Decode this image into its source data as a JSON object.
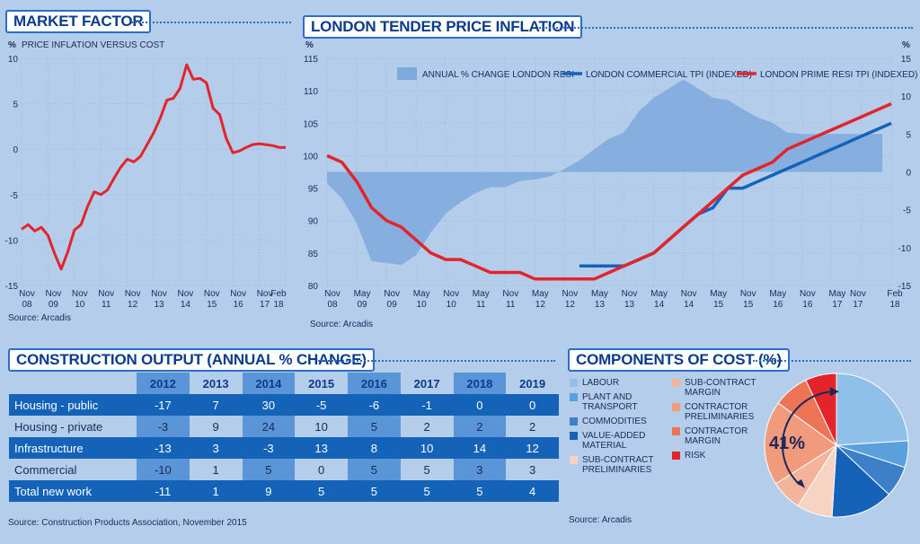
{
  "market": {
    "title": "MARKET FACTOR",
    "unit": "%",
    "subtitle": "PRICE INFLATION VERSUS COST",
    "source": "Source: Arcadis"
  },
  "london": {
    "title": "LONDON TENDER PRICE INFLATION",
    "unit_left": "%",
    "unit_right": "%",
    "source": "Source: Arcadis"
  },
  "output": {
    "title": "CONSTRUCTION OUTPUT (ANNUAL % CHANGE)",
    "years": [
      "2012",
      "2013",
      "2014",
      "2015",
      "2016",
      "2017",
      "2018",
      "2019"
    ],
    "rows": [
      {
        "label": "Housing - public",
        "values": [
          "-17",
          "7",
          "30",
          "-5",
          "-6",
          "-1",
          "0",
          "0"
        ]
      },
      {
        "label": "Housing - private",
        "values": [
          "-3",
          "9",
          "24",
          "10",
          "5",
          "2",
          "2",
          "2"
        ]
      },
      {
        "label": "Infrastructure",
        "values": [
          "-13",
          "3",
          "-3",
          "13",
          "8",
          "10",
          "14",
          "12"
        ]
      },
      {
        "label": "Commercial",
        "values": [
          "-10",
          "1",
          "5",
          "0",
          "5",
          "5",
          "3",
          "3"
        ]
      },
      {
        "label": "Total new work",
        "values": [
          "-11",
          "1",
          "9",
          "5",
          "5",
          "5",
          "5",
          "4"
        ]
      }
    ],
    "source": "Source: Construction Products Association, November 2015"
  },
  "components": {
    "title": "COMPONENTS OF COST (%)",
    "source": "Source: Arcadis",
    "highlight": "41%",
    "legend_col1": [
      {
        "label": "LABOUR",
        "color": "#8ec0ea"
      },
      {
        "label": "PLANT AND TRANSPORT",
        "color": "#5aa0dc"
      },
      {
        "label": "COMMODITIES",
        "color": "#3d7fc8"
      },
      {
        "label": "VALUE-ADDED MATERIAL",
        "color": "#1463b8"
      },
      {
        "label": "SUB-CONTRACT PRELIMINARIES",
        "color": "#f6d3c2"
      }
    ],
    "legend_col2": [
      {
        "label": "SUB-CONTRACT MARGIN",
        "color": "#f4b49a"
      },
      {
        "label": "CONTRACTOR PRELIMINARIES",
        "color": "#f29a7c"
      },
      {
        "label": "CONTRACTOR MARGIN",
        "color": "#ee7456"
      },
      {
        "label": "RISK",
        "color": "#e3242b"
      }
    ]
  },
  "chart_data": [
    {
      "type": "line",
      "title": "MARKET FACTOR",
      "subtitle": "PRICE INFLATION VERSUS COST",
      "ylabel": "%",
      "ylim": [
        -15,
        10
      ],
      "yticks": [
        "10",
        "5",
        "0",
        "-5",
        "-10",
        "-15"
      ],
      "xticks": [
        {
          "l1": "Nov",
          "l2": "08"
        },
        {
          "l1": "Nov",
          "l2": "09"
        },
        {
          "l1": "Nov",
          "l2": "10"
        },
        {
          "l1": "Nov",
          "l2": "11"
        },
        {
          "l1": "Nov",
          "l2": "12"
        },
        {
          "l1": "Nov",
          "l2": "13"
        },
        {
          "l1": "Nov",
          "l2": "14"
        },
        {
          "l1": "Nov",
          "l2": "15"
        },
        {
          "l1": "Nov",
          "l2": "16"
        },
        {
          "l1": "Nov",
          "l2": "17"
        },
        {
          "l1": "Feb",
          "l2": "18"
        }
      ],
      "x": [
        0,
        0.25,
        0.5,
        0.75,
        1.0,
        1.25,
        1.5,
        1.75,
        2.0,
        2.25,
        2.5,
        2.75,
        3.0,
        3.25,
        3.5,
        3.75,
        4.0,
        4.25,
        4.5,
        4.75,
        5.0,
        5.25,
        5.5,
        5.75,
        6.0,
        6.25,
        6.5,
        6.75,
        7.0,
        7.25,
        7.5,
        7.75,
        8.0,
        8.25,
        8.5,
        8.75,
        9.0,
        9.25,
        9.5,
        9.75,
        10.0
      ],
      "series": [
        {
          "name": "Price inflation versus cost",
          "color": "#e3242b",
          "values": [
            -8.8,
            -8.3,
            -9.0,
            -8.6,
            -9.5,
            -11.5,
            -13.2,
            -11.3,
            -8.9,
            -8.3,
            -6.3,
            -4.7,
            -5.0,
            -4.5,
            -3.2,
            -2.0,
            -1.1,
            -1.4,
            -0.8,
            0.5,
            1.8,
            3.4,
            5.4,
            5.6,
            6.7,
            9.3,
            7.7,
            7.8,
            7.3,
            4.5,
            3.8,
            1.2,
            -0.4,
            -0.2,
            0.2,
            0.5,
            0.6,
            0.5,
            0.4,
            0.2,
            0.2
          ]
        }
      ]
    },
    {
      "type": "line",
      "title": "LONDON TENDER PRICE INFLATION",
      "ylim_left": [
        80,
        115
      ],
      "ylim_right": [
        -15,
        15
      ],
      "yticks_left": [
        "115",
        "110",
        "105",
        "100",
        "95",
        "90",
        "85",
        "80"
      ],
      "yticks_right": [
        "15",
        "10",
        "5",
        "0",
        "-5",
        "-10",
        "-15"
      ],
      "xticks": [
        {
          "l1": "Nov",
          "l2": "08"
        },
        {
          "l1": "May",
          "l2": "09"
        },
        {
          "l1": "Nov",
          "l2": "09"
        },
        {
          "l1": "May",
          "l2": "10"
        },
        {
          "l1": "Nov",
          "l2": "10"
        },
        {
          "l1": "May",
          "l2": "11"
        },
        {
          "l1": "Nov",
          "l2": "11"
        },
        {
          "l1": "May",
          "l2": "12"
        },
        {
          "l1": "Nov",
          "l2": "12"
        },
        {
          "l1": "May",
          "l2": "13"
        },
        {
          "l1": "Nov",
          "l2": "13"
        },
        {
          "l1": "May",
          "l2": "14"
        },
        {
          "l1": "Nov",
          "l2": "14"
        },
        {
          "l1": "May",
          "l2": "15"
        },
        {
          "l1": "Nov",
          "l2": "15"
        },
        {
          "l1": "May",
          "l2": "16"
        },
        {
          "l1": "Nov",
          "l2": "16"
        },
        {
          "l1": "May",
          "l2": "17"
        },
        {
          "l1": "Nov",
          "l2": "17"
        },
        {
          "l1": "Feb",
          "l2": "18"
        }
      ],
      "area": {
        "name": "ANNUAL % CHANGE LONDON RESI",
        "axis": "right",
        "color": "#7ea9dd",
        "x": [
          0,
          0.5,
          1,
          1.5,
          2,
          2.5,
          3,
          3.5,
          4,
          4.5,
          5,
          5.5,
          6,
          6.5,
          7,
          7.5,
          8,
          8.5,
          9,
          9.5,
          10,
          10.5,
          11,
          11.5,
          12,
          12.5,
          13,
          13.5,
          14,
          14.5,
          15,
          15.5,
          16,
          16.5,
          17,
          17.5,
          18,
          18.5,
          18.7
        ],
        "values": [
          -1.5,
          -3.5,
          -6.8,
          -11.8,
          -12.0,
          -12.3,
          -11.0,
          -8.0,
          -5.5,
          -4.0,
          -2.8,
          -2.0,
          -2.0,
          -1.2,
          -1.0,
          -0.6,
          0.4,
          1.5,
          3.0,
          4.4,
          5.2,
          8.0,
          9.8,
          11.0,
          12.2,
          11.0,
          9.8,
          9.5,
          8.3,
          7.2,
          6.5,
          5.2,
          5.0,
          5.0,
          5.0,
          5.0,
          5.0,
          5.0,
          5.0
        ]
      },
      "series": [
        {
          "name": "LONDON COMMERCIAL TPI (INDEXED)",
          "axis": "left",
          "color": "#1463b8",
          "x": [
            8.5,
            9,
            9.5,
            10,
            10.5,
            11,
            11.5,
            12,
            12.5,
            13,
            13.5,
            14,
            14.5,
            15,
            15.5,
            16,
            16.5,
            17,
            17.5,
            18,
            18.5,
            19
          ],
          "values": [
            83,
            83,
            83,
            83,
            84,
            85,
            87,
            89,
            91,
            92,
            95,
            95,
            96,
            97,
            98,
            99,
            100,
            101,
            102,
            103,
            104,
            105
          ]
        },
        {
          "name": "LONDON PRIME RESI TPI (INDEXED)",
          "axis": "left",
          "color": "#e3242b",
          "x": [
            0,
            0.5,
            1,
            1.5,
            2,
            2.5,
            3,
            3.5,
            4,
            4.5,
            5,
            5.5,
            6,
            6.5,
            7,
            7.5,
            8,
            8.5,
            9,
            9.5,
            10,
            10.5,
            11,
            11.5,
            12,
            12.5,
            13,
            13.5,
            14,
            14.5,
            15,
            15.5,
            16,
            16.5,
            17,
            17.5,
            18,
            18.5,
            19
          ],
          "values": [
            100,
            99,
            96,
            92,
            90,
            89,
            87,
            85,
            84,
            84,
            83,
            82,
            82,
            82,
            81,
            81,
            81,
            81,
            81,
            82,
            83,
            84,
            85,
            87,
            89,
            91,
            93,
            95,
            97,
            98,
            99,
            101,
            102,
            103,
            104,
            105,
            106,
            107,
            108
          ]
        }
      ]
    },
    {
      "type": "pie",
      "title": "COMPONENTS OF COST (%)",
      "categories": [
        "LABOUR",
        "PLANT AND TRANSPORT",
        "COMMODITIES",
        "VALUE-ADDED MATERIAL",
        "SUB-CONTRACT PRELIMINARIES",
        "SUB-CONTRACT MARGIN",
        "CONTRACTOR PRELIMINARIES",
        "CONTRACTOR MARGIN",
        "RISK"
      ],
      "values": [
        24,
        6,
        7,
        14,
        8,
        7,
        19,
        8,
        7
      ],
      "colors": [
        "#8ec0ea",
        "#5aa0dc",
        "#3d7fc8",
        "#1463b8",
        "#f6d3c2",
        "#f4b49a",
        "#f29a7c",
        "#ee7456",
        "#e3242b"
      ],
      "annotation": "41%"
    }
  ]
}
